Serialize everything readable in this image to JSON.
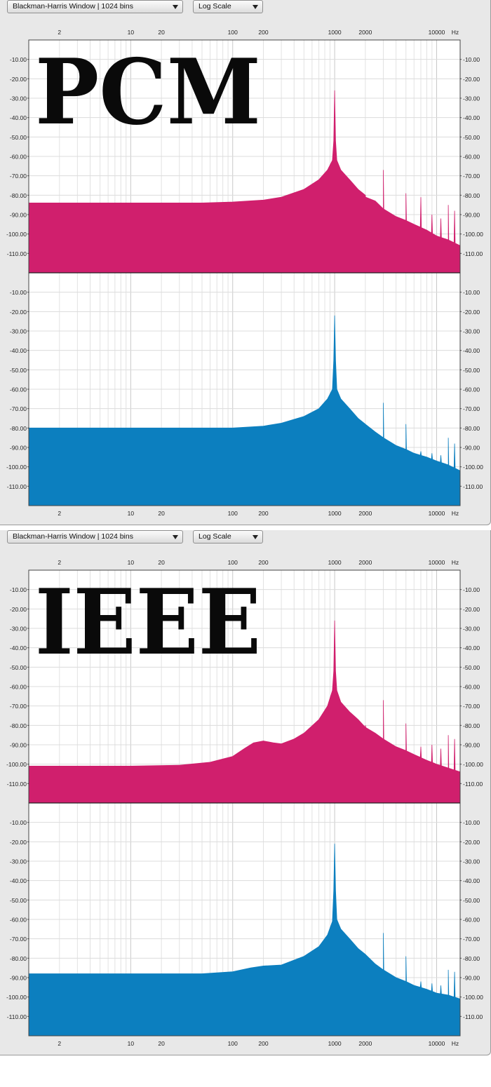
{
  "windows": [
    {
      "window_select": "Blackman-Harris Window | 1024 bins",
      "scale_select": "Log Scale",
      "overlay_label": "PCM",
      "unit_label": "Hz"
    },
    {
      "window_select": "Blackman-Harris Window | 1024 bins",
      "scale_select": "Log Scale",
      "overlay_label": "IEEE",
      "unit_label": "Hz"
    }
  ],
  "colors": {
    "top_channel": "#d01f6d",
    "bottom_channel": "#0c7fbf",
    "panel_bg": "#e8e8e8",
    "grid": "#d4d4d4"
  },
  "chart_data": [
    {
      "type": "area",
      "xscale": "log",
      "xlim": [
        1,
        17000
      ],
      "ylim": [
        -120,
        0
      ],
      "x_tick_labels": [
        "2",
        "10",
        "20",
        "100",
        "200",
        "1000",
        "2000",
        "10000"
      ],
      "y_tick_labels": [
        "-10.00",
        "-20.00",
        "-30.00",
        "-40.00",
        "-50.00",
        "-60.00",
        "-70.00",
        "-80.00",
        "-90.00",
        "-100.00",
        "-110.00"
      ],
      "series": [
        {
          "points": [
            [
              1,
              -84
            ],
            [
              10,
              -84
            ],
            [
              50,
              -84
            ],
            [
              100,
              -83.5
            ],
            [
              200,
              -82.5
            ],
            [
              300,
              -81
            ],
            [
              500,
              -77
            ],
            [
              700,
              -72
            ],
            [
              850,
              -67
            ],
            [
              950,
              -62
            ],
            [
              980,
              -52
            ],
            [
              1000,
              -26
            ],
            [
              1020,
              -52
            ],
            [
              1050,
              -62
            ],
            [
              1150,
              -67
            ],
            [
              1400,
              -72
            ],
            [
              1700,
              -77
            ],
            [
              2000,
              -80
            ],
            [
              2010,
              -81
            ],
            [
              2500,
              -83
            ],
            [
              3000,
              -87
            ],
            [
              4000,
              -91
            ],
            [
              5000,
              -93
            ],
            [
              6000,
              -95
            ],
            [
              8000,
              -98
            ],
            [
              10000,
              -101
            ],
            [
              13000,
              -103
            ],
            [
              17000,
              -106
            ]
          ],
          "spikes": [
            [
              2000,
              -80
            ],
            [
              3000,
              -67
            ],
            [
              5000,
              -79
            ],
            [
              7000,
              -81
            ],
            [
              9000,
              -90
            ],
            [
              11000,
              -92
            ],
            [
              13000,
              -85
            ],
            [
              15000,
              -88
            ]
          ]
        },
        {
          "points": [
            [
              1,
              -80
            ],
            [
              10,
              -80
            ],
            [
              50,
              -80
            ],
            [
              100,
              -80
            ],
            [
              200,
              -79
            ],
            [
              300,
              -77.5
            ],
            [
              500,
              -74
            ],
            [
              700,
              -70
            ],
            [
              850,
              -65
            ],
            [
              950,
              -60
            ],
            [
              980,
              -45
            ],
            [
              1000,
              -22
            ],
            [
              1020,
              -45
            ],
            [
              1050,
              -60
            ],
            [
              1150,
              -65
            ],
            [
              1400,
              -70
            ],
            [
              1700,
              -75
            ],
            [
              2000,
              -78
            ],
            [
              2500,
              -82
            ],
            [
              3000,
              -85
            ],
            [
              4000,
              -89
            ],
            [
              5000,
              -91
            ],
            [
              6000,
              -93
            ],
            [
              8000,
              -95
            ],
            [
              10000,
              -97
            ],
            [
              13000,
              -99
            ],
            [
              17000,
              -102
            ]
          ],
          "spikes": [
            [
              2000,
              -78
            ],
            [
              3000,
              -67
            ],
            [
              5000,
              -78
            ],
            [
              7000,
              -92
            ],
            [
              9000,
              -93
            ],
            [
              11000,
              -94
            ],
            [
              13000,
              -85
            ],
            [
              15000,
              -88
            ]
          ]
        }
      ]
    },
    {
      "type": "area",
      "xscale": "log",
      "xlim": [
        1,
        17000
      ],
      "ylim": [
        -120,
        0
      ],
      "x_tick_labels": [
        "2",
        "10",
        "20",
        "100",
        "200",
        "1000",
        "2000",
        "10000"
      ],
      "y_tick_labels": [
        "-10.00",
        "-20.00",
        "-30.00",
        "-40.00",
        "-50.00",
        "-60.00",
        "-70.00",
        "-80.00",
        "-90.00",
        "-100.00",
        "-110.00"
      ],
      "series": [
        {
          "points": [
            [
              1,
              -101
            ],
            [
              10,
              -101
            ],
            [
              30,
              -100.5
            ],
            [
              60,
              -99
            ],
            [
              100,
              -96
            ],
            [
              130,
              -92
            ],
            [
              160,
              -89
            ],
            [
              200,
              -88
            ],
            [
              250,
              -89
            ],
            [
              300,
              -89.5
            ],
            [
              400,
              -87
            ],
            [
              500,
              -84
            ],
            [
              700,
              -77
            ],
            [
              850,
              -70
            ],
            [
              950,
              -62
            ],
            [
              980,
              -52
            ],
            [
              1000,
              -26
            ],
            [
              1020,
              -52
            ],
            [
              1050,
              -62
            ],
            [
              1150,
              -68
            ],
            [
              1400,
              -73
            ],
            [
              1700,
              -77
            ],
            [
              2000,
              -81
            ],
            [
              2500,
              -84
            ],
            [
              3000,
              -87
            ],
            [
              4000,
              -91
            ],
            [
              5000,
              -93
            ],
            [
              6000,
              -95
            ],
            [
              8000,
              -98
            ],
            [
              10000,
              -100
            ],
            [
              13000,
              -102
            ],
            [
              17000,
              -104
            ]
          ],
          "spikes": [
            [
              2000,
              -80
            ],
            [
              3000,
              -67
            ],
            [
              5000,
              -79
            ],
            [
              7000,
              -91
            ],
            [
              9000,
              -90
            ],
            [
              11000,
              -92
            ],
            [
              13000,
              -85
            ],
            [
              15000,
              -87
            ]
          ]
        },
        {
          "points": [
            [
              1,
              -88
            ],
            [
              10,
              -88
            ],
            [
              50,
              -88
            ],
            [
              100,
              -87
            ],
            [
              150,
              -85
            ],
            [
              200,
              -84
            ],
            [
              300,
              -83.5
            ],
            [
              500,
              -79
            ],
            [
              700,
              -74
            ],
            [
              850,
              -68
            ],
            [
              950,
              -61
            ],
            [
              980,
              -45
            ],
            [
              1000,
              -21
            ],
            [
              1020,
              -45
            ],
            [
              1050,
              -60
            ],
            [
              1150,
              -65
            ],
            [
              1400,
              -70
            ],
            [
              1700,
              -75
            ],
            [
              2000,
              -78
            ],
            [
              2500,
              -83
            ],
            [
              3000,
              -86
            ],
            [
              4000,
              -90
            ],
            [
              5000,
              -92
            ],
            [
              6000,
              -94
            ],
            [
              8000,
              -96
            ],
            [
              10000,
              -98
            ],
            [
              13000,
              -99
            ],
            [
              17000,
              -101
            ]
          ],
          "spikes": [
            [
              2000,
              -78
            ],
            [
              3000,
              -67
            ],
            [
              5000,
              -79
            ],
            [
              7000,
              -92
            ],
            [
              9000,
              -93
            ],
            [
              11000,
              -94
            ],
            [
              13000,
              -86
            ],
            [
              15000,
              -87
            ]
          ]
        }
      ]
    }
  ]
}
